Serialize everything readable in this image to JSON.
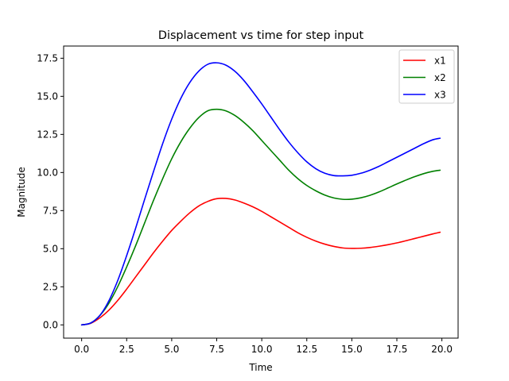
{
  "chart_data": {
    "type": "line",
    "title": "Displacement vs time for step input",
    "xlabel": "Time",
    "ylabel": "Magnitude",
    "xlim": [
      -1.0,
      20.9
    ],
    "ylim": [
      -0.87,
      18.3
    ],
    "xticks": [
      0.0,
      2.5,
      5.0,
      7.5,
      10.0,
      12.5,
      15.0,
      17.5,
      20.0
    ],
    "xtick_labels": [
      "0.0",
      "2.5",
      "5.0",
      "7.5",
      "10.0",
      "12.5",
      "15.0",
      "17.5",
      "20.0"
    ],
    "yticks": [
      0.0,
      2.5,
      5.0,
      7.5,
      10.0,
      12.5,
      15.0,
      17.5
    ],
    "ytick_labels": [
      "0.0",
      "2.5",
      "5.0",
      "7.5",
      "10.0",
      "12.5",
      "15.0",
      "17.5"
    ],
    "grid": false,
    "legend_position": "top-right",
    "x": [
      0,
      0.5,
      1,
      1.5,
      2,
      2.5,
      3,
      3.5,
      4,
      4.5,
      5,
      5.5,
      6,
      6.5,
      7,
      7.5,
      8,
      8.5,
      9,
      9.5,
      10,
      10.5,
      11,
      11.5,
      12,
      12.5,
      13,
      13.5,
      14,
      14.5,
      15,
      15.5,
      16,
      16.5,
      17,
      17.5,
      18,
      18.5,
      19,
      19.5,
      19.9
    ],
    "series": [
      {
        "name": "x1",
        "color": "#ff0000",
        "values": [
          0.0,
          0.1,
          0.45,
          0.95,
          1.6,
          2.35,
          3.15,
          3.95,
          4.75,
          5.5,
          6.2,
          6.8,
          7.35,
          7.8,
          8.1,
          8.28,
          8.3,
          8.2,
          8.0,
          7.75,
          7.45,
          7.1,
          6.75,
          6.4,
          6.05,
          5.75,
          5.5,
          5.3,
          5.15,
          5.05,
          5.02,
          5.03,
          5.08,
          5.16,
          5.26,
          5.38,
          5.52,
          5.67,
          5.82,
          5.97,
          6.08
        ]
      },
      {
        "name": "x2",
        "color": "#008000",
        "values": [
          0.0,
          0.12,
          0.6,
          1.4,
          2.5,
          3.8,
          5.2,
          6.7,
          8.2,
          9.6,
          10.9,
          12.0,
          12.9,
          13.6,
          14.05,
          14.15,
          14.05,
          13.75,
          13.3,
          12.75,
          12.1,
          11.45,
          10.8,
          10.15,
          9.6,
          9.15,
          8.8,
          8.52,
          8.33,
          8.24,
          8.25,
          8.34,
          8.5,
          8.72,
          8.98,
          9.25,
          9.5,
          9.73,
          9.93,
          10.08,
          10.15
        ]
      },
      {
        "name": "x3",
        "color": "#0000ff",
        "values": [
          0.0,
          0.12,
          0.6,
          1.55,
          2.9,
          4.55,
          6.35,
          8.25,
          10.1,
          11.9,
          13.5,
          14.85,
          15.9,
          16.65,
          17.1,
          17.2,
          17.05,
          16.65,
          16.05,
          15.3,
          14.5,
          13.65,
          12.8,
          12.0,
          11.3,
          10.7,
          10.25,
          9.95,
          9.8,
          9.78,
          9.82,
          9.95,
          10.15,
          10.4,
          10.7,
          11.0,
          11.3,
          11.6,
          11.9,
          12.15,
          12.25
        ]
      }
    ]
  }
}
